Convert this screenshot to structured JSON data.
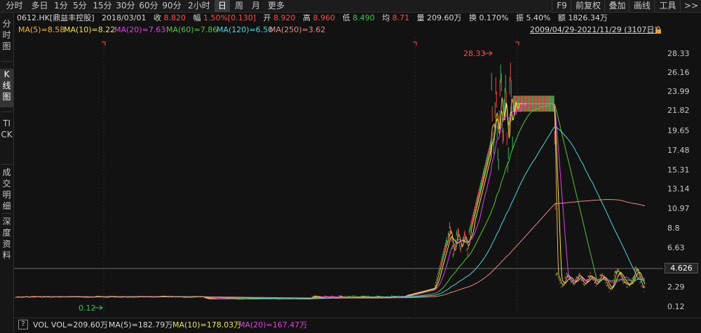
{
  "timeframes": [
    "分时",
    "多日",
    "1分",
    "5分",
    "15分",
    "30分",
    "60分",
    "90分",
    "2小时",
    "日",
    "周",
    "月",
    "更多"
  ],
  "active_timeframe": "日",
  "right_buttons": [
    "F9",
    "前复权",
    "叠加",
    "画线",
    "工具",
    ">>"
  ],
  "left_tabs": [
    {
      "label": "分时图",
      "active": false
    },
    {
      "label": "K线图",
      "active": true
    },
    {
      "label": "TICK",
      "active": false
    },
    {
      "label": "成交明细",
      "active": false
    },
    {
      "label": "深度资料",
      "active": false
    }
  ],
  "quote": {
    "stock": "0612.HK[鼎益丰控股]",
    "date": "2018/03/01",
    "close_label": "收",
    "close": "8.820",
    "change_label": "幅",
    "change": "1.50%[0.130]",
    "open_label": "开",
    "open": "8.920",
    "high_label": "高",
    "high": "8.960",
    "low_label": "低",
    "low": "8.490",
    "avg_label": "均",
    "avg": "8.71",
    "volume_label": "量",
    "volume": "209.60万",
    "turnover_label": "换",
    "turnover": "0.170%",
    "amplitude_label": "振",
    "amplitude": "5.40%",
    "amount_label": "额",
    "amount": "1826.34万"
  },
  "ma_legend": [
    {
      "text": "MA(5)=8.58",
      "color": "#f2b44a"
    },
    {
      "text": "MA(10)=8.22",
      "color": "#ece45c"
    },
    {
      "text": "MA(20)=7.63",
      "color": "#e23fe6"
    },
    {
      "text": "MA(60)=7.86",
      "color": "#58c240"
    },
    {
      "text": "MA(120)=6.50",
      "color": "#4fd6de"
    },
    {
      "text": "MA(250)=3.62",
      "color": "#e88a86"
    }
  ],
  "date_range": "2009/04/29-2021/11/29 (3107日)",
  "icons": {
    "lock": "lock-icon",
    "question": "question-icon"
  },
  "question_mark": "?",
  "y_axis": [
    "28.33",
    "26.16",
    "23.99",
    "21.82",
    "19.65",
    "17.48",
    "15.31",
    "13.14",
    "10.97",
    "8.8",
    "6.63",
    "4.626",
    "2.29",
    "0.12"
  ],
  "current_price": "4.626",
  "annotations": {
    "high": "28.33",
    "low": "0.12"
  },
  "volume": [
    {
      "text": "VOL",
      "color": "#d8d8d8"
    },
    {
      "text": "VOL=209.60万",
      "color": "#d8d8d8"
    },
    {
      "text": "MA(5)=182.79万",
      "color": "#d8d8d8"
    },
    {
      "text": "MA(10)=178.03万",
      "color": "#ece45c"
    },
    {
      "text": "MA(20)=167.47万",
      "color": "#e23fe6"
    }
  ],
  "colors": {
    "up": "#ff4a4a",
    "down": "#3ec25a",
    "bg": "#121212",
    "grid": "#333333"
  }
}
